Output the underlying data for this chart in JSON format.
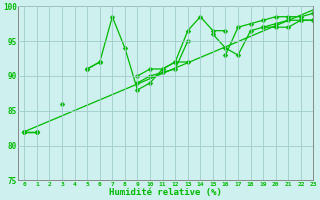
{
  "line1": [
    82,
    82,
    null,
    86,
    null,
    91,
    92,
    98.5,
    94,
    88,
    89,
    91,
    92,
    96.5,
    98.5,
    96.5,
    96.5,
    null,
    null,
    97,
    97,
    97,
    98,
    98,
    99.5
  ],
  "line2": [
    82,
    82,
    null,
    null,
    null,
    91,
    92,
    null,
    null,
    90,
    91,
    91,
    92,
    92,
    null,
    null,
    93,
    97,
    97.5,
    98,
    98.5,
    98.5,
    98.5,
    99,
    99.5
  ],
  "line3": [
    82,
    82,
    null,
    null,
    null,
    null,
    null,
    null,
    null,
    89,
    90,
    90.5,
    91,
    95,
    null,
    96,
    94,
    93,
    96.5,
    97,
    97.5,
    98,
    98,
    98,
    99.5
  ],
  "line4_x": [
    0,
    23
  ],
  "line4_y": [
    82,
    99.5
  ],
  "xlim": [
    -0.5,
    23
  ],
  "ylim": [
    75,
    100
  ],
  "yticks": [
    75,
    80,
    85,
    90,
    95,
    100
  ],
  "xticks": [
    0,
    1,
    2,
    3,
    4,
    5,
    6,
    7,
    8,
    9,
    10,
    11,
    12,
    13,
    14,
    15,
    16,
    17,
    18,
    19,
    20,
    21,
    22,
    23
  ],
  "xlabel": "Humidité relative (%)",
  "line_color": "#00bb00",
  "bg_color": "#cef0ee",
  "grid_color": "#a0cccc",
  "marker": "D",
  "markersize": 2.5,
  "linewidth": 0.9
}
